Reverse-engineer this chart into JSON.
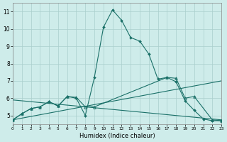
{
  "xlabel": "Humidex (Indice chaleur)",
  "bg_color": "#ceecea",
  "grid_color": "#aacfcc",
  "line_color": "#1a7068",
  "xlim": [
    0,
    23
  ],
  "ylim": [
    4.5,
    11.5
  ],
  "xticks": [
    0,
    1,
    2,
    3,
    4,
    5,
    6,
    7,
    8,
    9,
    10,
    11,
    12,
    13,
    14,
    15,
    16,
    17,
    18,
    19,
    20,
    21,
    22,
    23
  ],
  "yticks": [
    5,
    6,
    7,
    8,
    9,
    10,
    11
  ],
  "curve_main_diamond": {
    "x": [
      0,
      1,
      2,
      3,
      4,
      5,
      6,
      7,
      8,
      9,
      10,
      11,
      12,
      13,
      14,
      15,
      16,
      17,
      18,
      19,
      20,
      21,
      22,
      23
    ],
    "y": [
      4.75,
      5.1,
      5.4,
      5.5,
      5.8,
      5.55,
      6.1,
      6.0,
      5.0,
      7.2,
      10.1,
      11.1,
      10.5,
      9.5,
      9.3,
      8.55,
      7.1,
      7.2,
      6.95,
      5.85,
      5.3,
      4.8,
      4.7,
      4.7
    ]
  },
  "curve_diagonal_up": {
    "x": [
      0,
      23
    ],
    "y": [
      4.75,
      7.0
    ]
  },
  "curve_flat_declining": {
    "x": [
      0,
      23
    ],
    "y": [
      5.9,
      4.75
    ]
  },
  "curve_triangle": {
    "x": [
      0,
      1,
      2,
      3,
      4,
      5,
      6,
      7,
      8,
      9,
      17,
      18,
      19,
      20,
      22,
      23
    ],
    "y": [
      4.75,
      5.1,
      5.4,
      5.5,
      5.8,
      5.55,
      6.1,
      6.05,
      5.5,
      5.5,
      7.2,
      7.15,
      6.0,
      6.1,
      4.75,
      4.7
    ]
  }
}
